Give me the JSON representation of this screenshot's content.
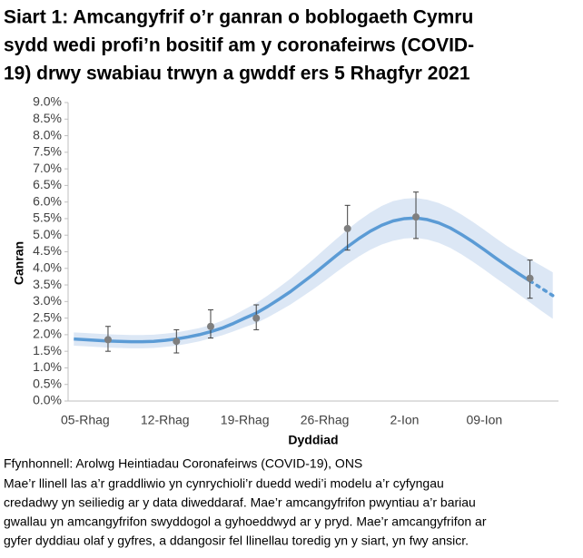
{
  "chart_data": {
    "type": "line",
    "title": [
      "Siart 1: Amcangyfrif o’r ganran o boblogaeth Cymru",
      "sydd wedi profi’n bositif am y coronafeirws (COVID-",
      "19) drwy swabiau trwyn a gwddf ers 5 Rhagfyr 2021"
    ],
    "y_label": "Canran",
    "x_label": "Dyddiad",
    "source": "Ffynhonnell: Arolwg Heintiadau Coronafeirws (COVID-19), ONS",
    "note": [
      "Mae’r llinell las a’r graddliwio yn cynrychioli’r duedd wedi’i modelu a’r cyfyngau",
      "credadwy yn seiliedig ar y data diweddaraf. Mae’r amcangyfrifon pwyntiau a’r bariau",
      "gwallau yn amcangyfrifon swyddogol a gyhoeddwyd ar y pryd. Mae’r amcangyfrifon ar",
      "gyfer dyddiau olaf y gyfres, a ddangosir fel llinellau toredig yn y siart, yn fwy ansicr."
    ],
    "categories": [
      null,
      "05-Rhag",
      null,
      null,
      null,
      null,
      null,
      null,
      "12-Rhag",
      null,
      null,
      null,
      null,
      null,
      null,
      "19-Rhag",
      null,
      null,
      null,
      null,
      null,
      null,
      "26-Rhag",
      null,
      null,
      null,
      null,
      null,
      null,
      "2-Ion",
      null,
      null,
      null,
      null,
      null,
      null,
      "09-Ion",
      null,
      null,
      null,
      null,
      null,
      null
    ],
    "line_color": "#5b9bd5",
    "band_color": "#dce7f5",
    "point_color": "#7f7f7f",
    "values": [
      1.87,
      1.85,
      1.83,
      1.81,
      1.8,
      1.79,
      1.79,
      1.8,
      1.83,
      1.87,
      1.93,
      2.0,
      2.09,
      2.2,
      2.34,
      2.5,
      2.65,
      2.85,
      3.07,
      3.3,
      3.56,
      3.82,
      4.1,
      4.38,
      4.65,
      4.9,
      5.12,
      5.3,
      5.43,
      5.5,
      5.52,
      5.47,
      5.37,
      5.22,
      5.02,
      4.8,
      4.56,
      4.31,
      4.07,
      3.84,
      3.62,
      null,
      null
    ],
    "dotted_values": [
      null,
      null,
      null,
      null,
      null,
      null,
      null,
      null,
      null,
      null,
      null,
      null,
      null,
      null,
      null,
      null,
      null,
      null,
      null,
      null,
      null,
      null,
      null,
      null,
      null,
      null,
      null,
      null,
      null,
      null,
      null,
      null,
      null,
      null,
      null,
      null,
      null,
      null,
      null,
      null,
      3.62,
      3.4,
      3.18
    ],
    "band_upper": [
      2.07,
      2.05,
      2.03,
      2.01,
      2.0,
      1.99,
      1.99,
      2.0,
      2.03,
      2.07,
      2.13,
      2.2,
      2.29,
      2.42,
      2.58,
      2.77,
      2.95,
      3.18,
      3.43,
      3.69,
      3.98,
      4.27,
      4.58,
      4.88,
      5.17,
      5.44,
      5.68,
      5.88,
      6.03,
      6.1,
      6.12,
      6.07,
      5.97,
      5.82,
      5.62,
      5.4,
      5.16,
      4.91,
      4.67,
      4.46,
      4.27,
      4.08,
      3.88
    ],
    "band_lower": [
      1.67,
      1.65,
      1.63,
      1.61,
      1.6,
      1.59,
      1.59,
      1.6,
      1.63,
      1.67,
      1.73,
      1.8,
      1.89,
      1.98,
      2.1,
      2.23,
      2.35,
      2.52,
      2.71,
      2.91,
      3.14,
      3.37,
      3.62,
      3.88,
      4.13,
      4.36,
      4.56,
      4.72,
      4.83,
      4.9,
      4.92,
      4.87,
      4.77,
      4.62,
      4.42,
      4.2,
      3.96,
      3.71,
      3.47,
      3.22,
      2.97,
      2.72,
      2.48
    ],
    "point_values": [
      null,
      null,
      null,
      1.85,
      null,
      null,
      null,
      null,
      null,
      1.8,
      null,
      null,
      2.25,
      null,
      null,
      null,
      2.5,
      null,
      null,
      null,
      null,
      null,
      null,
      null,
      5.2,
      null,
      null,
      null,
      null,
      null,
      5.55,
      null,
      null,
      null,
      null,
      null,
      null,
      null,
      null,
      null,
      3.7,
      null,
      null
    ],
    "point_lower": [
      null,
      null,
      null,
      1.5,
      null,
      null,
      null,
      null,
      null,
      1.45,
      null,
      null,
      1.9,
      null,
      null,
      null,
      2.15,
      null,
      null,
      null,
      null,
      null,
      null,
      null,
      4.55,
      null,
      null,
      null,
      null,
      null,
      4.9,
      null,
      null,
      null,
      null,
      null,
      null,
      null,
      null,
      null,
      3.1,
      null,
      null
    ],
    "point_upper": [
      null,
      null,
      null,
      2.25,
      null,
      null,
      null,
      null,
      null,
      2.15,
      null,
      null,
      2.75,
      null,
      null,
      null,
      2.9,
      null,
      null,
      null,
      null,
      null,
      null,
      null,
      5.9,
      null,
      null,
      null,
      null,
      null,
      6.3,
      null,
      null,
      null,
      null,
      null,
      null,
      null,
      null,
      null,
      4.25,
      null,
      null
    ],
    "ylim": [
      0,
      9
    ],
    "yticks": [
      {
        "value": 0,
        "label": "0.0%"
      },
      {
        "value": 0.5,
        "label": "0.5%"
      },
      {
        "value": 1,
        "label": "1.0%"
      },
      {
        "value": 1.5,
        "label": "1.5%"
      },
      {
        "value": 2,
        "label": "2.0%"
      },
      {
        "value": 2.5,
        "label": "2.5%"
      },
      {
        "value": 3,
        "label": "3.0%"
      },
      {
        "value": 3.5,
        "label": "3.5%"
      },
      {
        "value": 4,
        "label": "4.0%"
      },
      {
        "value": 4.5,
        "label": "4.5%"
      },
      {
        "value": 5,
        "label": "5.0%"
      },
      {
        "value": 5.5,
        "label": "5.5%"
      },
      {
        "value": 6,
        "label": "6.0%"
      },
      {
        "value": 6.5,
        "label": "6.5%"
      },
      {
        "value": 7,
        "label": "7.0%"
      },
      {
        "value": 7.5,
        "label": "7.5%"
      },
      {
        "value": 8,
        "label": "8.0%"
      },
      {
        "value": 8.5,
        "label": "8.5%"
      },
      {
        "value": 9,
        "label": "9.0%"
      }
    ],
    "grid": false
  }
}
